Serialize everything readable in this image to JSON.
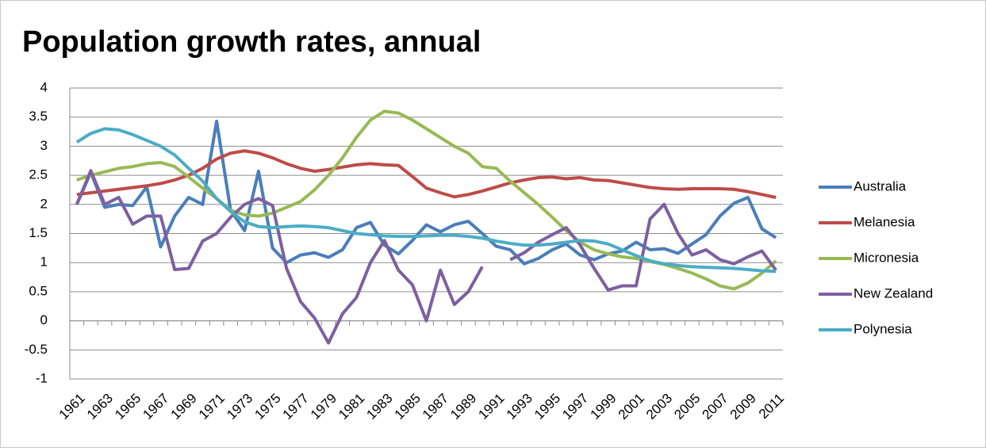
{
  "chart_data": {
    "type": "line",
    "title": "Population growth rates, annual",
    "categories": [
      "1961",
      null,
      "1963",
      null,
      "1965",
      null,
      "1967",
      null,
      "1969",
      null,
      "1971",
      null,
      "1973",
      null,
      "1975",
      null,
      "1977",
      null,
      "1979",
      null,
      "1981",
      null,
      "1983",
      null,
      "1985",
      null,
      "1987",
      null,
      "1989",
      null,
      "1991",
      null,
      "1993",
      null,
      "1995",
      null,
      "1997",
      null,
      "1999",
      null,
      "2001",
      null,
      "2003",
      null,
      "2005",
      null,
      "2007",
      null,
      "2009",
      null,
      "2011"
    ],
    "series": [
      {
        "name": "Australia",
        "color": "#4a7ebb",
        "values": [
          2.0,
          2.55,
          1.95,
          2.0,
          1.98,
          2.3,
          1.27,
          1.8,
          2.12,
          2.0,
          3.43,
          1.9,
          1.55,
          2.57,
          1.25,
          1.0,
          1.13,
          1.17,
          1.09,
          1.22,
          1.6,
          1.69,
          1.3,
          1.15,
          1.38,
          1.65,
          1.53,
          1.65,
          1.71,
          1.5,
          1.28,
          1.22,
          0.98,
          1.07,
          1.22,
          1.32,
          1.13,
          1.05,
          1.15,
          1.2,
          1.35,
          1.22,
          1.24,
          1.16,
          1.32,
          1.48,
          1.8,
          2.02,
          2.12,
          1.58,
          1.43
        ]
      },
      {
        "name": "Melanesia",
        "color": "#be4b48",
        "values": [
          2.17,
          2.2,
          2.23,
          2.26,
          2.29,
          2.32,
          2.36,
          2.42,
          2.5,
          2.62,
          2.78,
          2.88,
          2.92,
          2.88,
          2.8,
          2.7,
          2.62,
          2.57,
          2.6,
          2.64,
          2.68,
          2.7,
          2.68,
          2.67,
          2.48,
          2.28,
          2.2,
          2.13,
          2.17,
          2.23,
          2.3,
          2.37,
          2.42,
          2.46,
          2.47,
          2.44,
          2.46,
          2.42,
          2.41,
          2.37,
          2.33,
          2.29,
          2.27,
          2.26,
          2.27,
          2.27,
          2.27,
          2.26,
          2.22,
          2.17,
          2.12
        ]
      },
      {
        "name": "Micronesia",
        "color": "#98b954",
        "values": [
          2.42,
          2.5,
          2.56,
          2.62,
          2.65,
          2.7,
          2.72,
          2.65,
          2.47,
          2.28,
          2.1,
          1.9,
          1.82,
          1.8,
          1.85,
          1.95,
          2.05,
          2.25,
          2.5,
          2.8,
          3.15,
          3.45,
          3.6,
          3.57,
          3.45,
          3.3,
          3.15,
          3.0,
          2.88,
          2.65,
          2.62,
          2.4,
          2.2,
          2.0,
          1.78,
          1.55,
          1.35,
          1.22,
          1.15,
          1.1,
          1.07,
          1.02,
          0.97,
          0.9,
          0.82,
          0.72,
          0.6,
          0.55,
          0.65,
          0.82,
          1.03
        ]
      },
      {
        "name": "New Zealand",
        "color": "#7d60a0",
        "values": [
          2.0,
          2.58,
          2.0,
          2.12,
          1.66,
          1.8,
          1.8,
          0.88,
          0.9,
          1.37,
          1.5,
          1.78,
          2.0,
          2.1,
          1.98,
          0.9,
          0.33,
          0.05,
          -0.38,
          0.12,
          0.4,
          1.0,
          1.38,
          0.87,
          0.62,
          0.0,
          0.87,
          0.28,
          0.5,
          0.93,
          null,
          1.05,
          1.17,
          1.35,
          1.48,
          1.6,
          1.3,
          0.9,
          0.53,
          0.6,
          0.6,
          1.75,
          2.0,
          1.5,
          1.13,
          1.22,
          1.05,
          0.98,
          1.1,
          1.2,
          0.87
        ]
      },
      {
        "name": "Polynesia",
        "color": "#4bacc6",
        "values": [
          3.07,
          3.22,
          3.3,
          3.28,
          3.2,
          3.1,
          3.0,
          2.85,
          2.62,
          2.4,
          2.1,
          1.88,
          1.7,
          1.62,
          1.6,
          1.62,
          1.63,
          1.62,
          1.6,
          1.55,
          1.5,
          1.48,
          1.46,
          1.45,
          1.45,
          1.46,
          1.47,
          1.47,
          1.45,
          1.42,
          1.37,
          1.33,
          1.3,
          1.3,
          1.32,
          1.35,
          1.38,
          1.37,
          1.32,
          1.22,
          1.12,
          1.03,
          0.98,
          0.95,
          0.93,
          0.92,
          0.91,
          0.9,
          0.88,
          0.86,
          0.85
        ]
      }
    ],
    "ylim": [
      -1,
      4
    ],
    "yticks": [
      -1,
      -0.5,
      0,
      0.5,
      1,
      1.5,
      2,
      2.5,
      3,
      3.5,
      4
    ],
    "grid": true,
    "legend": "right"
  }
}
